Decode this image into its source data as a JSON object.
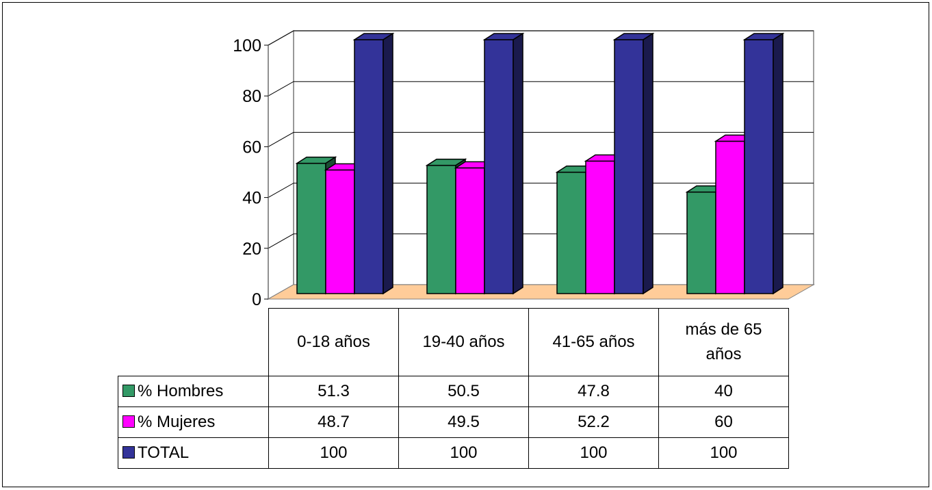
{
  "chart_data": {
    "type": "bar",
    "style": "3d-clustered-column",
    "categories": [
      "0-18 años",
      "19-40 años",
      "41-65 años",
      "más de 65 años"
    ],
    "series": [
      {
        "name": "% Hombres",
        "values": [
          51.3,
          50.5,
          47.8,
          40
        ],
        "color": "#339966"
      },
      {
        "name": "% Mujeres",
        "values": [
          48.7,
          49.5,
          52.2,
          60
        ],
        "color": "#FF00FF"
      },
      {
        "name": "TOTAL",
        "values": [
          100,
          100,
          100,
          100
        ],
        "color": "#333399"
      }
    ],
    "y_ticks": [
      "0",
      "20",
      "40",
      "60",
      "80",
      "100"
    ],
    "ylim": [
      0,
      100
    ],
    "grid": true,
    "floor_color": "#FFCC99",
    "title": "",
    "xlabel": "",
    "ylabel": "",
    "data_table": true,
    "legend": "in-table"
  }
}
